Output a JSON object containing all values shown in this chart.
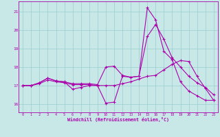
{
  "bg_color": "#c8e8e8",
  "line_color": "#aa00aa",
  "grid_color": "#99cccc",
  "xlabel": "Windchill (Refroidissement éolien,°C)",
  "xmin": -0.5,
  "xmax": 23.5,
  "ymin": 15.55,
  "ymax": 21.55,
  "yticks": [
    16,
    17,
    18,
    19,
    20,
    21
  ],
  "xticks": [
    0,
    1,
    2,
    3,
    4,
    5,
    6,
    7,
    8,
    9,
    10,
    11,
    12,
    13,
    14,
    15,
    16,
    17,
    18,
    19,
    20,
    21,
    22,
    23
  ],
  "line1_x": [
    0,
    1,
    2,
    3,
    4,
    5,
    6,
    7,
    8,
    9,
    10,
    11,
    12,
    13,
    14,
    15,
    16,
    17,
    18,
    19,
    20,
    21,
    22,
    23
  ],
  "line1_y": [
    17.0,
    17.0,
    17.15,
    17.4,
    17.25,
    17.2,
    16.8,
    16.9,
    17.0,
    17.0,
    16.05,
    16.1,
    17.5,
    17.45,
    17.5,
    21.2,
    20.55,
    18.85,
    18.4,
    17.2,
    16.7,
    16.45,
    16.2,
    16.2
  ],
  "line2_x": [
    0,
    1,
    2,
    3,
    4,
    5,
    6,
    7,
    8,
    9,
    10,
    11,
    12,
    13,
    14,
    15,
    16,
    17,
    18,
    19,
    20,
    21,
    22,
    23
  ],
  "line2_y": [
    17.0,
    17.0,
    17.15,
    17.4,
    17.25,
    17.2,
    17.1,
    17.1,
    17.1,
    17.05,
    18.0,
    18.05,
    17.55,
    17.45,
    17.5,
    19.65,
    20.3,
    19.5,
    18.5,
    18.0,
    17.5,
    17.15,
    16.9,
    16.5
  ],
  "line3_x": [
    0,
    1,
    2,
    3,
    4,
    5,
    6,
    7,
    8,
    9,
    10,
    11,
    12,
    13,
    14,
    15,
    16,
    17,
    18,
    19,
    20,
    21,
    22,
    23
  ],
  "line3_y": [
    17.0,
    17.0,
    17.1,
    17.3,
    17.2,
    17.15,
    17.05,
    17.05,
    17.05,
    17.0,
    17.0,
    17.0,
    17.1,
    17.2,
    17.35,
    17.5,
    17.55,
    17.85,
    18.15,
    18.35,
    18.3,
    17.5,
    16.85,
    16.2
  ]
}
